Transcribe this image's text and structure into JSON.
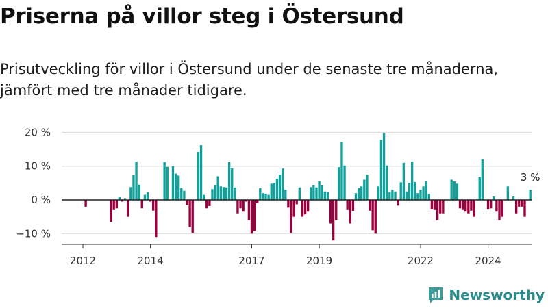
{
  "header": {
    "title": "Priserna på villor steg i Östersund",
    "subtitle": "Prisutveckling för villor i Östersund under de senaste tre månaderna, jämfört med tre månader tidigare."
  },
  "brand": {
    "name": "Newsworthy",
    "icon": "bar-chart-logo-icon",
    "color": "#2a8c8c"
  },
  "chart_data": {
    "type": "bar",
    "x_start_year": 2011.5,
    "x_step_years": 0.08333,
    "ylim": [
      -13,
      22
    ],
    "yticks": [
      20,
      10,
      0,
      -10
    ],
    "ytick_labels": [
      "20 %",
      "10 %",
      "0 %",
      "−10 %"
    ],
    "xticks": [
      2012,
      2014,
      2017,
      2019,
      2022,
      2024
    ],
    "xtick_labels": [
      "2012",
      "2014",
      "2017",
      "2019",
      "2022",
      "2024"
    ],
    "grid": true,
    "colors": {
      "positive": "#12a19a",
      "negative": "#99003d"
    },
    "annotation": {
      "text": "3 %",
      "value": 3
    },
    "values": [
      0,
      0,
      0,
      0,
      0,
      0,
      0,
      -2,
      0,
      0,
      0,
      0,
      0,
      0,
      0,
      0,
      -6.5,
      -3,
      -2.5,
      0.8,
      -0.5,
      0.3,
      -5,
      3.8,
      7.3,
      11.3,
      4.5,
      -2.5,
      1.5,
      2.3,
      -0.5,
      -3.2,
      -11,
      0,
      0,
      11.2,
      9.8,
      0,
      10,
      7.8,
      7.2,
      3.5,
      2.7,
      -1.5,
      -8,
      -9.8,
      0,
      14.2,
      16.2,
      1.5,
      -2.5,
      -1.8,
      3.2,
      4.3,
      7,
      4,
      3.8,
      3.7,
      11.2,
      9.4,
      3.7,
      -4,
      -2.5,
      -3.5,
      -0.5,
      -6,
      -10,
      -9.3,
      -1,
      3.5,
      2,
      1.8,
      1.5,
      4.8,
      5,
      6.3,
      7.5,
      9.3,
      3,
      -2.3,
      -9.8,
      -5,
      -1.3,
      3.7,
      -5,
      -4.3,
      -3.5,
      3.8,
      4.3,
      3.7,
      5.5,
      4.3,
      2.5,
      2.3,
      -7,
      -12,
      -6,
      9.7,
      17.2,
      10.2,
      -3,
      -7,
      -3.3,
      2,
      3.5,
      4,
      6,
      7.5,
      -3.2,
      -9,
      -10,
      4,
      17.8,
      19.8,
      10.2,
      2.3,
      3,
      2.5,
      -1.7,
      5.2,
      11,
      2.5,
      5,
      11.3,
      5.3,
      2,
      3,
      4,
      5.5,
      1.8,
      -2.8,
      -3,
      -6,
      -4,
      -4,
      0,
      0,
      6,
      5.5,
      4.8,
      -2.5,
      -3,
      -3.5,
      -4,
      -3.2,
      -5,
      0,
      6.8,
      12,
      0,
      -2.8,
      -2.5,
      1,
      -3.5,
      -6,
      -5,
      0,
      4,
      0,
      1,
      -4,
      -2,
      -2,
      -5,
      0,
      3
    ]
  }
}
